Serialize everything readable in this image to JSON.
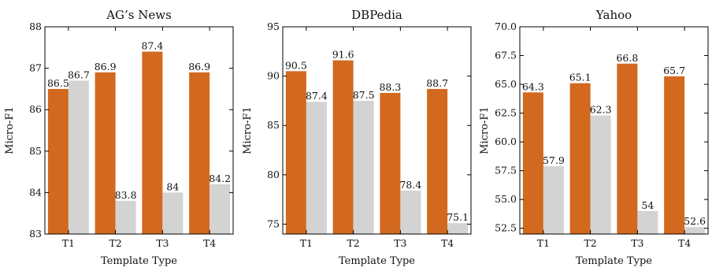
{
  "colors": {
    "primary": "#d2691e",
    "secondary": "#d3d3d3"
  },
  "chart_data": [
    {
      "type": "bar",
      "title": "AG’s News",
      "xlabel": "Template Type",
      "ylabel": "Micro-F1",
      "categories": [
        "T1",
        "T2",
        "T3",
        "T4"
      ],
      "series": [
        {
          "values": [
            86.5,
            86.9,
            87.4,
            86.9
          ],
          "labels": [
            "86.5",
            "86.9",
            "87.4",
            "86.9"
          ]
        },
        {
          "values": [
            86.7,
            83.8,
            84.0,
            84.2
          ],
          "labels": [
            "86.7",
            "83.8",
            "84",
            "84.2"
          ]
        }
      ],
      "ylim": [
        83,
        88
      ],
      "yticks": [
        83,
        84,
        85,
        86,
        87,
        88
      ],
      "ytick_labels": [
        "83",
        "84",
        "85",
        "86",
        "87",
        "88"
      ],
      "grid": false
    },
    {
      "type": "bar",
      "title": "DBPedia",
      "xlabel": "Template Type",
      "ylabel": "Micro-F1",
      "categories": [
        "T1",
        "T2",
        "T3",
        "T4"
      ],
      "series": [
        {
          "values": [
            90.5,
            91.6,
            88.3,
            88.7
          ],
          "labels": [
            "90.5",
            "91.6",
            "88.3",
            "88.7"
          ]
        },
        {
          "values": [
            87.4,
            87.5,
            78.4,
            75.1
          ],
          "labels": [
            "87.4",
            "87.5",
            "78.4",
            "75.1"
          ]
        }
      ],
      "ylim": [
        74,
        95
      ],
      "yticks": [
        75,
        80,
        85,
        90,
        95
      ],
      "ytick_labels": [
        "75",
        "80",
        "85",
        "90",
        "95"
      ],
      "grid": false
    },
    {
      "type": "bar",
      "title": "Yahoo",
      "xlabel": "Template Type",
      "ylabel": "Micro-F1",
      "categories": [
        "T1",
        "T2",
        "T3",
        "T4"
      ],
      "series": [
        {
          "values": [
            64.3,
            65.1,
            66.8,
            65.7
          ],
          "labels": [
            "64.3",
            "65.1",
            "66.8",
            "65.7"
          ]
        },
        {
          "values": [
            57.9,
            62.3,
            54.0,
            52.6
          ],
          "labels": [
            "57.9",
            "62.3",
            "54",
            "52.6"
          ]
        }
      ],
      "ylim": [
        52,
        70
      ],
      "yticks": [
        52.5,
        55.0,
        57.5,
        60.0,
        62.5,
        65.0,
        67.5,
        70.0
      ],
      "ytick_labels": [
        "52.5",
        "55.0",
        "57.5",
        "60.0",
        "62.5",
        "65.0",
        "67.5",
        "70.0"
      ],
      "grid": false
    }
  ]
}
